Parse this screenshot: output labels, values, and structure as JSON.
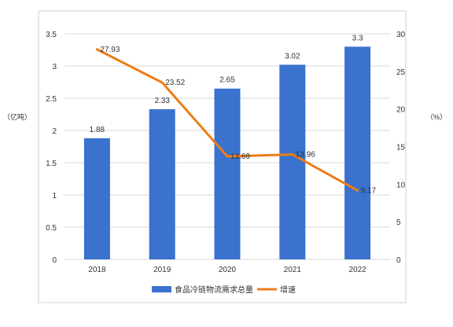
{
  "chart_data": {
    "type": "bar",
    "categories": [
      "2018",
      "2019",
      "2020",
      "2021",
      "2022"
    ],
    "series": [
      {
        "name": "食品冷链物流需求总量",
        "type": "bar",
        "axis": "left",
        "color": "#3a72cd",
        "values": [
          1.88,
          2.33,
          2.65,
          3.02,
          3.3
        ],
        "labels": [
          "1.88",
          "2.33",
          "2.65",
          "3.02",
          "3.3"
        ]
      },
      {
        "name": "增速",
        "type": "line",
        "axis": "right",
        "color": "#ef7d17",
        "values": [
          27.93,
          23.52,
          13.69,
          13.96,
          9.17
        ],
        "labels": [
          "27.93",
          "23.52",
          "13.69",
          "13.96",
          "9.17"
        ]
      }
    ],
    "y_left": {
      "label": "（亿吨）",
      "ylim": [
        0,
        3.5
      ],
      "ticks": [
        0,
        0.5,
        1,
        1.5,
        2,
        2.5,
        3,
        3.5
      ],
      "tick_labels": [
        "0",
        "0.5",
        "1",
        "1.5",
        "2",
        "2.5",
        "3",
        "3.5"
      ]
    },
    "y_right": {
      "label": "（%）",
      "ylim": [
        0,
        30
      ],
      "ticks": [
        0,
        5,
        10,
        15,
        20,
        25,
        30
      ],
      "tick_labels": [
        "0",
        "5",
        "10",
        "15",
        "20",
        "25",
        "30"
      ]
    },
    "grid": true,
    "legend": "bottom-center",
    "colors": {
      "grid": "#d9d9d9",
      "text": "#333333",
      "border": "#d0d0d0"
    }
  }
}
